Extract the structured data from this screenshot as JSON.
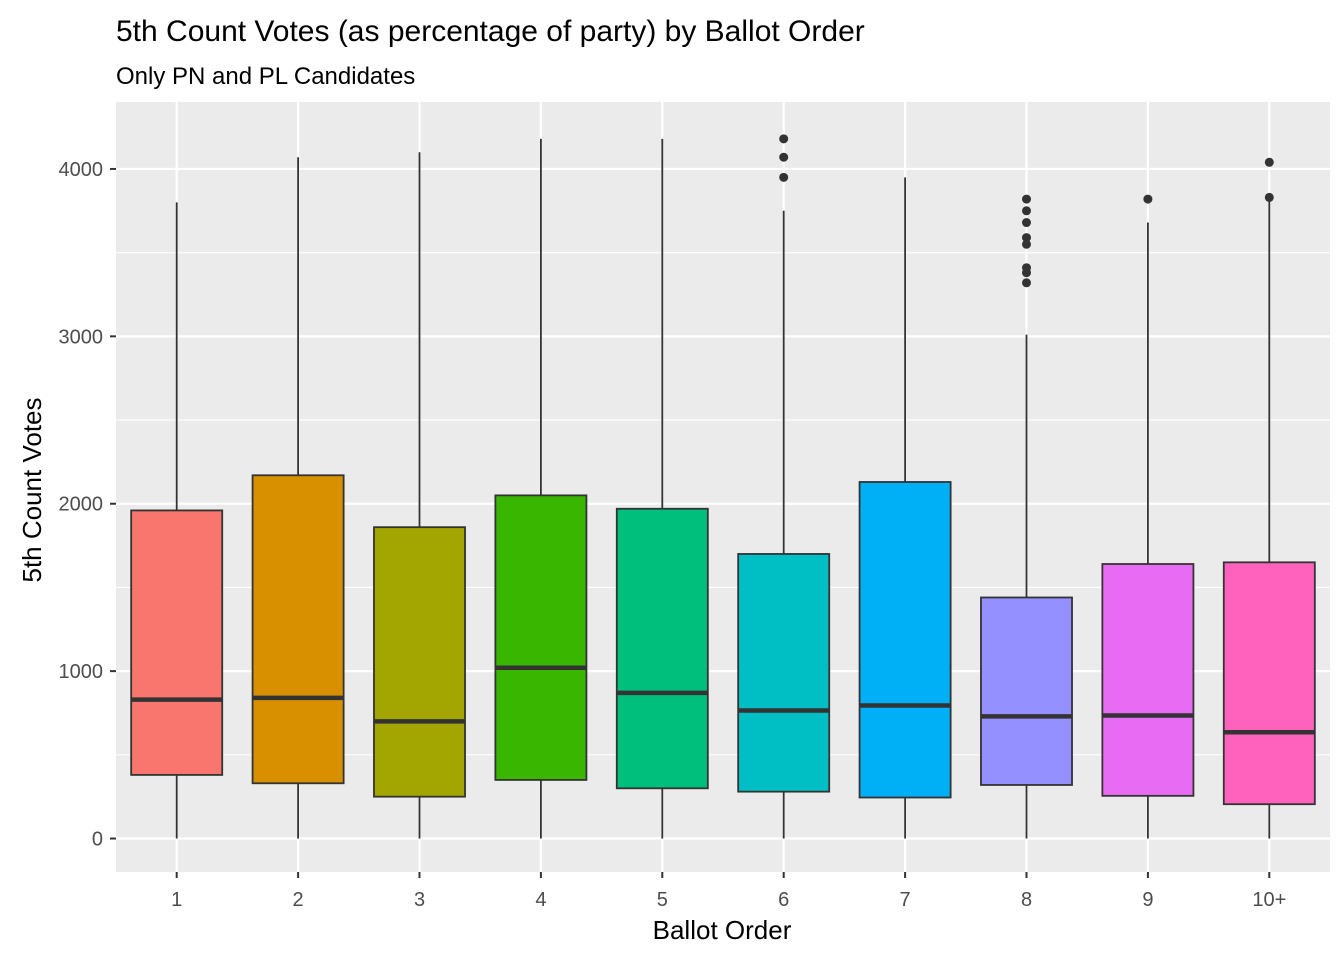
{
  "chart_data": {
    "type": "boxplot",
    "title": "5th Count Votes (as percentage of party) by Ballot Order",
    "subtitle": "Only PN and PL Candidates",
    "xlabel": "Ballot Order",
    "ylabel": "5th Count Votes",
    "ylim": [
      -200,
      4400
    ],
    "yticks": [
      0,
      1000,
      2000,
      3000,
      4000
    ],
    "grid": true,
    "legend": "none",
    "categories": [
      "1",
      "2",
      "3",
      "4",
      "5",
      "6",
      "7",
      "8",
      "9",
      "10+"
    ],
    "boxes": [
      {
        "category": "1",
        "min": 0,
        "q1": 380,
        "median": 830,
        "q3": 1960,
        "max": 3800,
        "outliers": [],
        "color": "#F8766D"
      },
      {
        "category": "2",
        "min": 0,
        "q1": 330,
        "median": 840,
        "q3": 2170,
        "max": 4070,
        "outliers": [],
        "color": "#D89000"
      },
      {
        "category": "3",
        "min": 0,
        "q1": 250,
        "median": 700,
        "q3": 1860,
        "max": 4100,
        "outliers": [],
        "color": "#A3A500"
      },
      {
        "category": "4",
        "min": 0,
        "q1": 350,
        "median": 1020,
        "q3": 2050,
        "max": 4180,
        "outliers": [],
        "color": "#39B600"
      },
      {
        "category": "5",
        "min": 0,
        "q1": 300,
        "median": 870,
        "q3": 1970,
        "max": 4180,
        "outliers": [],
        "color": "#00BF7D"
      },
      {
        "category": "6",
        "min": 0,
        "q1": 280,
        "median": 765,
        "q3": 1700,
        "max": 3750,
        "outliers": [
          3950,
          4070,
          4180
        ],
        "color": "#00BFC4"
      },
      {
        "category": "7",
        "min": 0,
        "q1": 245,
        "median": 795,
        "q3": 2130,
        "max": 3950,
        "outliers": [],
        "color": "#00B0F6"
      },
      {
        "category": "8",
        "min": 0,
        "q1": 320,
        "median": 730,
        "q3": 1440,
        "max": 3010,
        "outliers": [
          3320,
          3380,
          3410,
          3550,
          3590,
          3680,
          3750,
          3820
        ],
        "color": "#9590FF"
      },
      {
        "category": "9",
        "min": 0,
        "q1": 255,
        "median": 735,
        "q3": 1640,
        "max": 3680,
        "outliers": [
          3820
        ],
        "color": "#E76BF3"
      },
      {
        "category": "10+",
        "min": 0,
        "q1": 205,
        "median": 635,
        "q3": 1650,
        "max": 3820,
        "outliers": [
          3830,
          4040
        ],
        "color": "#FF62BC"
      }
    ]
  }
}
